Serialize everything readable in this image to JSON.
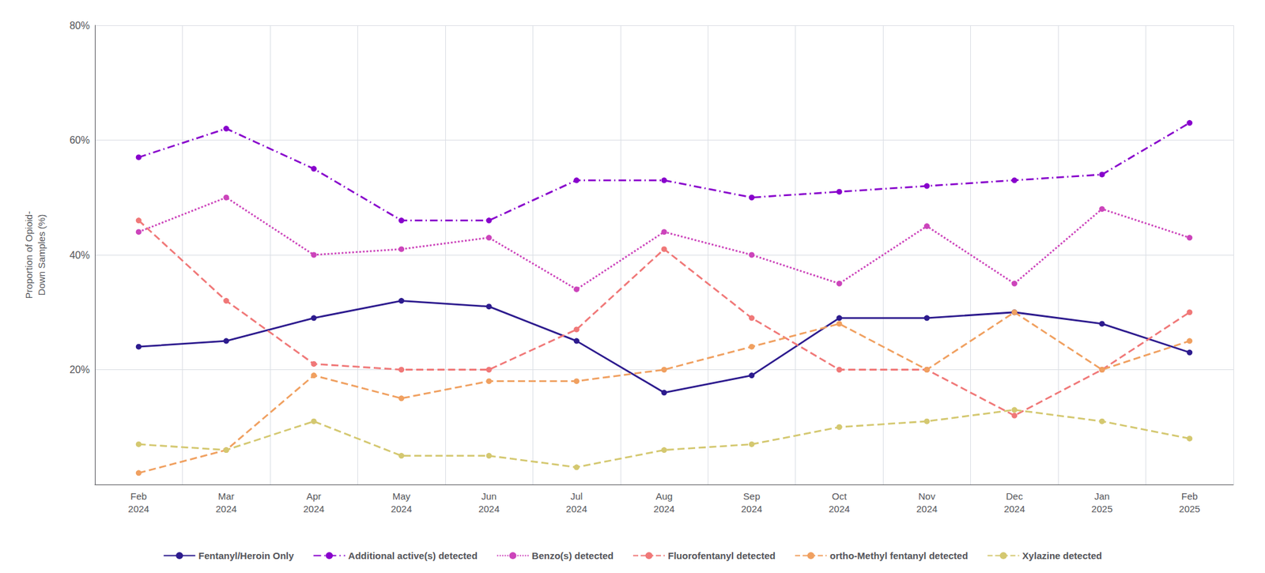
{
  "chart_data": {
    "type": "line",
    "categories": [
      "Feb\n2024",
      "Mar\n2024",
      "Apr\n2024",
      "May\n2024",
      "Jun\n2024",
      "Jul\n2024",
      "Aug\n2024",
      "Sep\n2024",
      "Oct\n2024",
      "Nov\n2024",
      "Dec\n2024",
      "Jan\n2025",
      "Feb\n2025"
    ],
    "ylabel": "Proportion of Opioid-\nDown Samples (%)",
    "ylim": [
      0,
      80
    ],
    "yticks": [
      {
        "value": 20,
        "label": "20%"
      },
      {
        "value": 40,
        "label": "40%"
      },
      {
        "value": 60,
        "label": "60%"
      },
      {
        "value": 80,
        "label": "80%"
      }
    ],
    "grid": true,
    "legend": "bottom",
    "series": [
      {
        "name": "Fentanyl/Heroin Only",
        "color": "#2d1b8e",
        "line_style": "solid",
        "marker": "circle",
        "values": [
          24,
          25,
          29,
          32,
          31,
          25,
          16,
          19,
          29,
          29,
          30,
          28,
          23
        ]
      },
      {
        "name": "Additional active(s) detected",
        "color": "#8800cc",
        "line_style": "dashdot",
        "marker": "circle",
        "values": [
          57,
          62,
          55,
          46,
          46,
          53,
          53,
          50,
          51,
          52,
          53,
          54,
          63
        ]
      },
      {
        "name": "Benzo(s) detected",
        "color": "#cc44bb",
        "line_style": "dotted",
        "marker": "circle",
        "values": [
          44,
          50,
          40,
          41,
          43,
          34,
          44,
          40,
          35,
          45,
          35,
          48,
          43
        ]
      },
      {
        "name": "Fluorofentanyl detected",
        "color": "#f07878",
        "line_style": "dashed",
        "marker": "circle",
        "values": [
          46,
          32,
          21,
          20,
          20,
          27,
          41,
          29,
          20,
          20,
          12,
          20,
          30
        ]
      },
      {
        "name": "ortho-Methyl fentanyl detected",
        "color": "#f0a060",
        "line_style": "dashed",
        "marker": "circle",
        "values": [
          2,
          6,
          19,
          15,
          18,
          18,
          20,
          24,
          28,
          20,
          30,
          20,
          25
        ]
      },
      {
        "name": "Xylazine detected",
        "color": "#d4c870",
        "line_style": "dashed",
        "marker": "circle",
        "values": [
          7,
          6,
          11,
          5,
          5,
          3,
          6,
          7,
          10,
          11,
          13,
          11,
          8
        ]
      }
    ]
  }
}
